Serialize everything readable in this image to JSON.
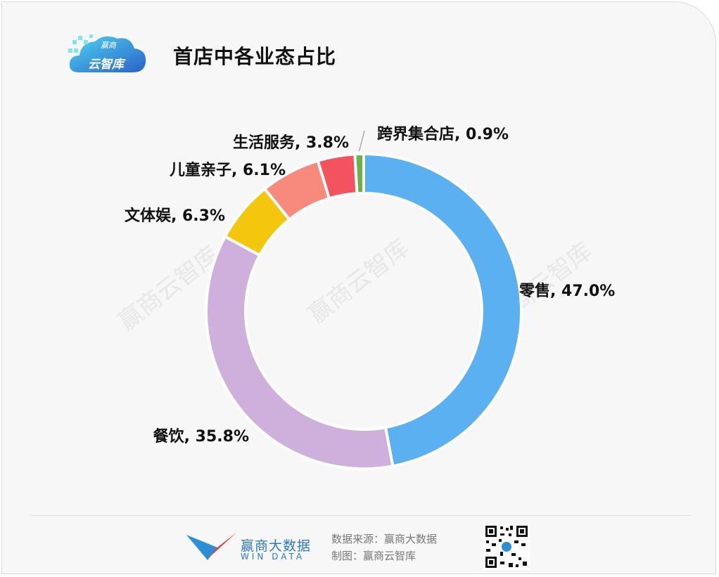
{
  "header": {
    "title": "首店中各业态占比",
    "logo_text": "云智库",
    "logo_small": "赢商"
  },
  "watermark": "赢商云智库",
  "chart_data": {
    "type": "donut",
    "title": "首店中各业态占比",
    "unit": "%",
    "order": "clockwise from top",
    "slices": [
      {
        "label": "零售",
        "value": 47.0,
        "text": "零售, 47.0%",
        "color": "#5ab0f0"
      },
      {
        "label": "餐饮",
        "value": 35.8,
        "text": "餐饮, 35.8%",
        "color": "#cfb0dc"
      },
      {
        "label": "文体娱",
        "value": 6.3,
        "text": "文体娱, 6.3%",
        "color": "#f4c60e"
      },
      {
        "label": "儿童亲子",
        "value": 6.1,
        "text": "儿童亲子, 6.1%",
        "color": "#f88a7d"
      },
      {
        "label": "生活服务",
        "value": 3.8,
        "text": "生活服务, 3.8%",
        "color": "#f2535e"
      },
      {
        "label": "跨界集合店",
        "value": 0.9,
        "text": "跨界集合店, 0.9%",
        "color": "#6bb04a"
      }
    ]
  },
  "footer": {
    "brand_name": "赢商大数据",
    "brand_sub": "WIN DATA",
    "source": "数据来源：赢商大数据",
    "credit": "制图：赢商云智库",
    "qr_icon": "qr-code-icon"
  }
}
